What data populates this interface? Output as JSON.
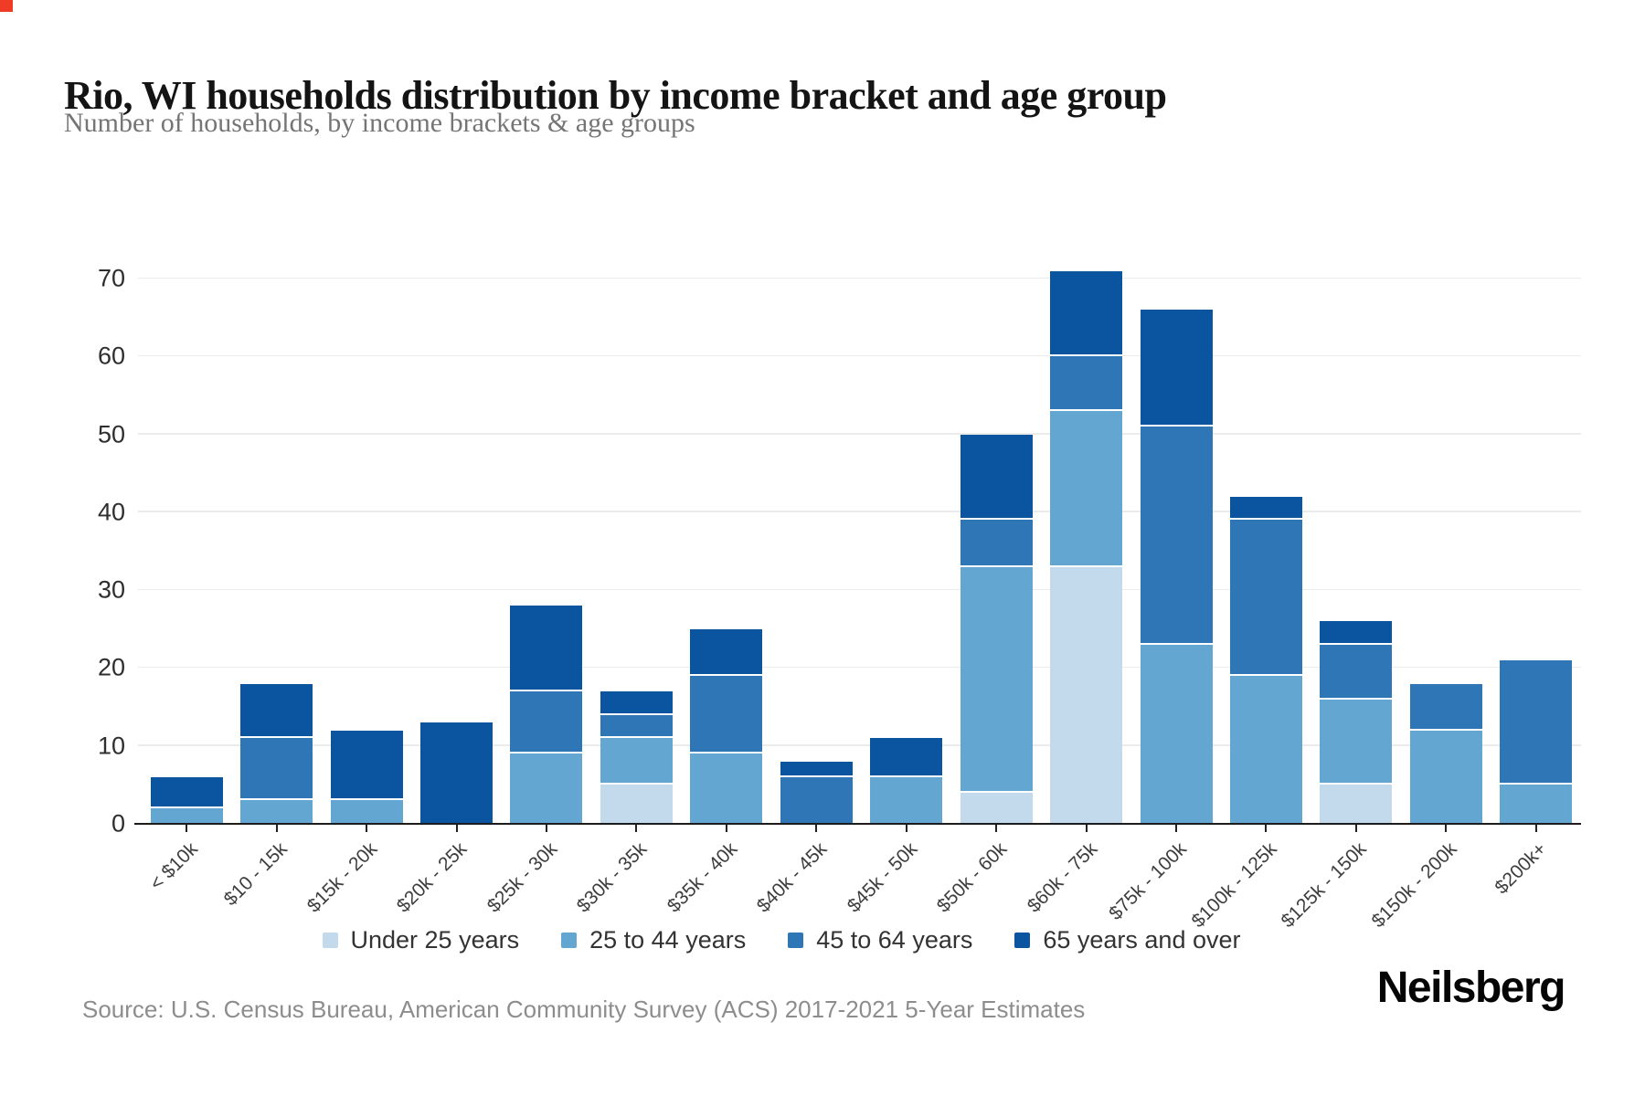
{
  "header": {
    "title": "Rio, WI households distribution by income bracket and age group",
    "subtitle": "Number of households, by income brackets & age groups"
  },
  "chart_data": {
    "type": "bar",
    "stacked": true,
    "title": "Rio, WI households distribution by income bracket and age group",
    "xlabel": "",
    "ylabel": "",
    "ylim": [
      0,
      70
    ],
    "yticks": [
      0,
      10,
      20,
      30,
      40,
      50,
      60,
      70
    ],
    "grid": true,
    "legend_position": "bottom",
    "categories": [
      "< $10k",
      "$10 - 15k",
      "$15k - 20k",
      "$20k - 25k",
      "$25k - 30k",
      "$30k - 35k",
      "$35k - 40k",
      "$40k - 45k",
      "$45k - 50k",
      "$50k - 60k",
      "$60k - 75k",
      "$75k - 100k",
      "$100k - 125k",
      "$125k - 150k",
      "$150k - 200k",
      "$200k+"
    ],
    "series": [
      {
        "name": "Under 25 years",
        "color": "#c2daeb",
        "values": [
          0,
          0,
          0,
          0,
          0,
          5,
          0,
          0,
          0,
          4,
          33,
          0,
          0,
          5,
          0,
          0
        ]
      },
      {
        "name": "25 to 44 years",
        "color": "#64a6d2",
        "values": [
          2,
          3,
          3,
          0,
          9,
          6,
          9,
          0,
          6,
          29,
          20,
          23,
          19,
          11,
          12,
          5
        ]
      },
      {
        "name": "45 to 64 years",
        "color": "#2e76b5",
        "values": [
          0,
          8,
          0,
          0,
          8,
          3,
          10,
          6,
          0,
          6,
          7,
          28,
          20,
          7,
          6,
          16
        ]
      },
      {
        "name": "65 years and over",
        "color": "#0b55a0",
        "values": [
          4,
          7,
          9,
          13,
          11,
          3,
          6,
          2,
          5,
          11,
          11,
          15,
          3,
          3,
          0,
          0
        ]
      }
    ],
    "totals": [
      6,
      18,
      12,
      13,
      28,
      17,
      25,
      8,
      11,
      50,
      71,
      66,
      42,
      26,
      18,
      21
    ]
  },
  "footer": {
    "source": "Source: U.S. Census Bureau, American Community Survey (ACS) 2017-2021 5-Year Estimates",
    "brand": "Neilsberg"
  },
  "ui": {
    "corner_marker_color": "#f03b26",
    "axis_color": "#1c1c1c",
    "gridline_color": "#ebebeb"
  }
}
